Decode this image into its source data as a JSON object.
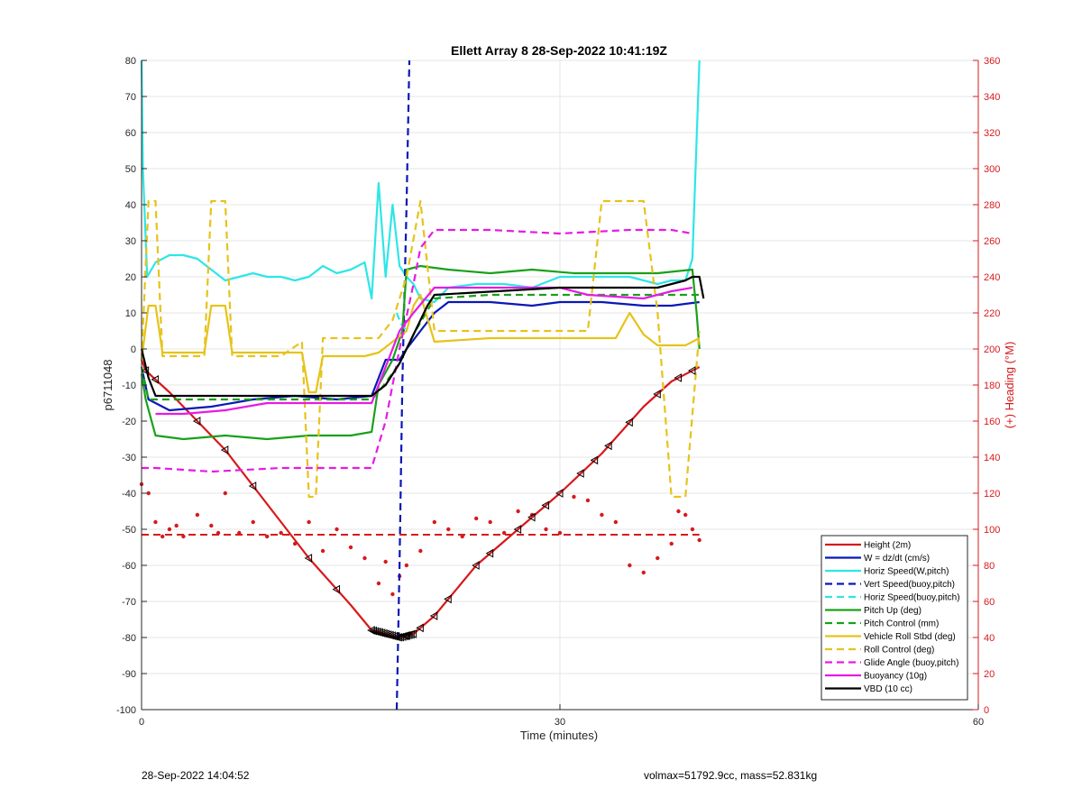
{
  "chart_data": {
    "type": "line",
    "title": "Ellett Array 8 28-Sep-2022 10:41:19Z",
    "xlabel": "Time (minutes)",
    "ylabel_left": "p6711048",
    "ylabel_right": "(+) Heading (°M)",
    "xlim": [
      0,
      60
    ],
    "ylim_left": [
      -100,
      80
    ],
    "ylim_right": [
      0,
      360
    ],
    "xticks": [
      "0",
      "30",
      "60"
    ],
    "yticks_left": [
      "80",
      "70",
      "60",
      "50",
      "40",
      "30",
      "20",
      "10",
      "0",
      "-10",
      "-20",
      "-30",
      "-40",
      "-50",
      "-60",
      "-70",
      "-80",
      "-90",
      "-100"
    ],
    "yticks_right": [
      "360",
      "340",
      "320",
      "300",
      "280",
      "260",
      "240",
      "220",
      "200",
      "180",
      "160",
      "140",
      "120",
      "100",
      "80",
      "60",
      "40",
      "20",
      "0"
    ],
    "grid": true,
    "legend_position": "bottom-right",
    "colors": {
      "red": "#d7191c",
      "blue": "#0a18b5",
      "cyan": "#2ee6e6",
      "green": "#1aa01a",
      "yellow": "#e6c31a",
      "magenta": "#e61ae6",
      "black": "#000000"
    },
    "series": [
      {
        "name": "Height (2m)",
        "color": "#d7191c",
        "style": "solid",
        "x": [
          0,
          0.3,
          2,
          6,
          10,
          12,
          15,
          16.5,
          17.5,
          18.5,
          19.5,
          21,
          24,
          27,
          30,
          33,
          36,
          38,
          40
        ],
        "y": [
          -3,
          -6,
          -12,
          -28,
          -48,
          -58,
          -71,
          -78,
          -79,
          -80,
          -79,
          -74,
          -60,
          -50,
          -40,
          -29,
          -16,
          -9,
          -5
        ]
      },
      {
        "name": "W = dz/dt (cm/s)",
        "color": "#0a18b5",
        "style": "solid",
        "x": [
          0,
          0.5,
          2,
          5,
          8,
          11,
          14,
          16.5,
          17.5,
          18.5,
          19,
          20,
          21,
          22,
          25,
          28,
          30,
          33,
          36,
          38,
          40
        ],
        "y": [
          -5,
          -14,
          -17,
          -16,
          -14,
          -13,
          -14,
          -13,
          -3,
          -3,
          0,
          5,
          10,
          13,
          13,
          12,
          13,
          13,
          12,
          12,
          13
        ]
      },
      {
        "name": "Horiz Speed(W,pitch)",
        "color": "#2ee6e6",
        "style": "solid",
        "x": [
          0,
          0.1,
          0.4,
          1,
          2,
          3,
          4,
          5,
          6,
          7,
          8,
          9,
          10,
          11,
          12,
          13,
          14,
          15,
          16,
          16.5,
          17,
          17.5,
          18,
          18.5,
          19,
          19.5,
          20,
          21,
          22,
          24,
          26,
          28,
          30,
          33,
          35,
          37,
          38,
          39,
          39.5,
          40
        ],
        "y": [
          80,
          50,
          20,
          24,
          26,
          26,
          25,
          22,
          19,
          20,
          21,
          20,
          20,
          19,
          20,
          23,
          21,
          22,
          24,
          14,
          46,
          20,
          40,
          23,
          20,
          18,
          14,
          13,
          17,
          18,
          18,
          17,
          20,
          20,
          20,
          18,
          19,
          19,
          25,
          80
        ]
      },
      {
        "name": "Vert Speed(buoy,pitch)",
        "color": "#0a18b5",
        "style": "dashed",
        "x": [
          18.3,
          18.5,
          18.7,
          19,
          19.2
        ],
        "y": [
          -100,
          -60,
          -10,
          40,
          80
        ]
      },
      {
        "name": "Horiz Speed(buoy,pitch)",
        "color": "#2ee6e6",
        "style": "dashed",
        "x": [
          18.3,
          18.6,
          19
        ],
        "y": [
          10,
          7,
          5
        ]
      },
      {
        "name": "Pitch Up (deg)",
        "color": "#1aa01a",
        "style": "solid",
        "x": [
          0,
          0.3,
          1,
          3,
          6,
          9,
          12,
          15,
          16.5,
          17,
          18,
          18.7,
          19,
          20,
          22,
          25,
          28,
          31,
          34,
          37,
          39.5,
          39.8,
          40
        ],
        "y": [
          -7,
          -14,
          -24,
          -25,
          -24,
          -25,
          -24,
          -24,
          -23,
          -10,
          -3,
          5,
          22,
          23,
          22,
          21,
          22,
          21,
          21,
          21,
          22,
          10,
          0
        ]
      },
      {
        "name": "Pitch Control (mm)",
        "color": "#1aa01a",
        "style": "dashed",
        "x": [
          0,
          0.5,
          5,
          10,
          16.5,
          17,
          18.5,
          19.5,
          21,
          25,
          30,
          35,
          40
        ],
        "y": [
          -5,
          -14,
          -14,
          -14,
          -14,
          -12,
          -4,
          4,
          14,
          15,
          15,
          15,
          15
        ]
      },
      {
        "name": "Vehicle Roll Stbd (deg)",
        "color": "#e6c31a",
        "style": "solid",
        "x": [
          0,
          0.5,
          1,
          1.5,
          4.5,
          5,
          6,
          6.5,
          7,
          10,
          11.5,
          12,
          12.5,
          13,
          16,
          17,
          18,
          19,
          19.5,
          20,
          21,
          25,
          28,
          30,
          33,
          34,
          35,
          36,
          37,
          38,
          39,
          40
        ],
        "y": [
          -3,
          12,
          12,
          -1,
          -1,
          12,
          12,
          -1,
          -1,
          -1,
          -1,
          -12,
          -12,
          -2,
          -2,
          -1,
          2,
          5,
          12,
          15,
          2,
          3,
          3,
          3,
          3,
          3,
          10,
          4,
          1,
          1,
          1,
          3
        ]
      },
      {
        "name": "Roll Control (deg)",
        "color": "#e6c31a",
        "style": "dashed",
        "x": [
          0,
          0.5,
          1,
          1.5,
          4.5,
          5,
          6,
          6.5,
          7,
          10,
          11.5,
          12,
          12.5,
          13,
          16,
          17,
          18,
          19,
          20,
          21,
          25,
          28,
          32,
          33,
          36,
          37,
          38,
          39,
          40
        ],
        "y": [
          -3,
          41,
          41,
          -2,
          -2,
          41,
          41,
          -2,
          -2,
          -2,
          2,
          -41,
          -41,
          3,
          3,
          3,
          8,
          20,
          41,
          5,
          5,
          5,
          5,
          41,
          41,
          10,
          -41,
          -41,
          5
        ]
      },
      {
        "name": "Glide Angle (buoy,pitch)",
        "color": "#e61ae6",
        "style": "dashed",
        "x": [
          0,
          1,
          5,
          10,
          15,
          16.5,
          17.5,
          18.5,
          19.5,
          20,
          21,
          25,
          30,
          35,
          38,
          39.5
        ],
        "y": [
          -33,
          -33,
          -34,
          -33,
          -33,
          -33,
          -20,
          0,
          18,
          28,
          33,
          33,
          32,
          33,
          33,
          32
        ]
      },
      {
        "name": "Buoyancy (10g)",
        "color": "#e61ae6",
        "style": "solid",
        "x": [
          1,
          3,
          6,
          9,
          14,
          16.5,
          18.5,
          19.5,
          21,
          25,
          30,
          32,
          36,
          38,
          39.5
        ],
        "y": [
          -18,
          -18,
          -17,
          -15,
          -15,
          -15,
          5,
          10,
          17,
          17,
          17,
          15,
          14,
          16,
          17
        ]
      },
      {
        "name": "VBD (10 cc)",
        "color": "#000000",
        "style": "solid",
        "x": [
          0,
          0.5,
          1,
          5,
          10,
          16.5,
          17.5,
          18.5,
          19.5,
          20.5,
          21,
          30,
          37,
          38,
          39,
          39.5,
          40,
          40.3
        ],
        "y": [
          0,
          -8,
          -13,
          -13,
          -13,
          -13,
          -10,
          -4,
          4,
          12,
          15,
          17,
          17,
          18,
          19,
          20,
          20,
          14
        ]
      }
    ],
    "heading_points": {
      "name": "Heading (°M)",
      "axis": "right",
      "color": "#d7191c",
      "x": [
        0,
        0.5,
        1,
        1.5,
        2,
        2.5,
        3,
        4,
        5,
        5.5,
        6,
        7,
        8,
        9,
        10,
        11,
        12,
        13,
        14,
        15,
        16,
        17,
        17.5,
        18,
        18.5,
        19,
        20,
        21,
        22,
        23,
        24,
        25,
        26,
        27,
        28,
        29,
        30,
        31,
        32,
        33,
        34,
        35,
        36,
        37,
        38,
        38.5,
        39,
        39.5,
        40
      ],
      "y": [
        125,
        120,
        104,
        96,
        100,
        102,
        96,
        108,
        102,
        98,
        120,
        98,
        104,
        96,
        98,
        92,
        104,
        88,
        100,
        90,
        84,
        70,
        82,
        64,
        74,
        80,
        88,
        104,
        100,
        96,
        106,
        104,
        98,
        110,
        108,
        100,
        98,
        118,
        116,
        108,
        104,
        80,
        76,
        84,
        92,
        110,
        108,
        100,
        94
      ]
    },
    "heading_mean": {
      "axis": "right",
      "value": 97,
      "color": "#d7191c",
      "style": "dashed"
    },
    "height_markers_x": [
      0.3,
      1,
      4,
      6,
      8,
      12,
      14,
      19,
      20,
      21,
      22,
      24,
      25,
      27,
      28,
      29,
      30,
      31.5,
      32.5,
      33.5,
      35,
      37,
      38.5,
      39.5
    ]
  },
  "footer": {
    "left": "28-Sep-2022 14:04:52",
    "right": "volmax=51792.9cc, mass=52.831kg"
  }
}
